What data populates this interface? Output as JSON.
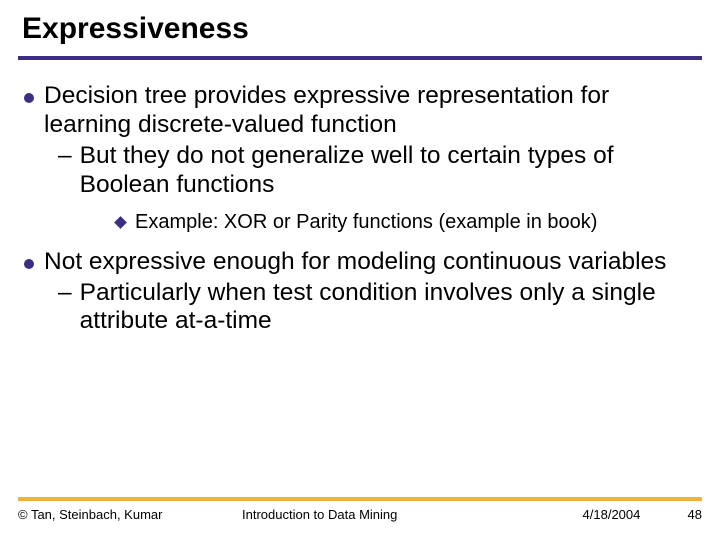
{
  "colors": {
    "title_underline": "#3c2f80",
    "bullet_dot": "#3c2f80",
    "bullet_diamond": "#3c2f80",
    "footer_line": "#f3b233",
    "text": "#000000",
    "background": "#ffffff"
  },
  "typography": {
    "title_fontsize": 30,
    "body_fontsize": 24.5,
    "sub_fontsize": 20,
    "footer_fontsize": 13,
    "font_family": "Arial"
  },
  "title": "Expressiveness",
  "bullets": [
    {
      "level": 1,
      "text": "Decision tree provides expressive representation for learning discrete-valued function"
    },
    {
      "level": 2,
      "text": "But they do not generalize well to certain types of Boolean functions"
    },
    {
      "level": 3,
      "text": "Example: XOR or Parity functions (example in book)"
    },
    {
      "level": 1,
      "text": "Not expressive enough for modeling continuous variables"
    },
    {
      "level": 2,
      "text": "Particularly when test condition involves only a single attribute at-a-time"
    }
  ],
  "footer": {
    "left": "© Tan, Steinbach, Kumar",
    "center": "Introduction to Data Mining",
    "date": "4/18/2004",
    "page": "48"
  }
}
